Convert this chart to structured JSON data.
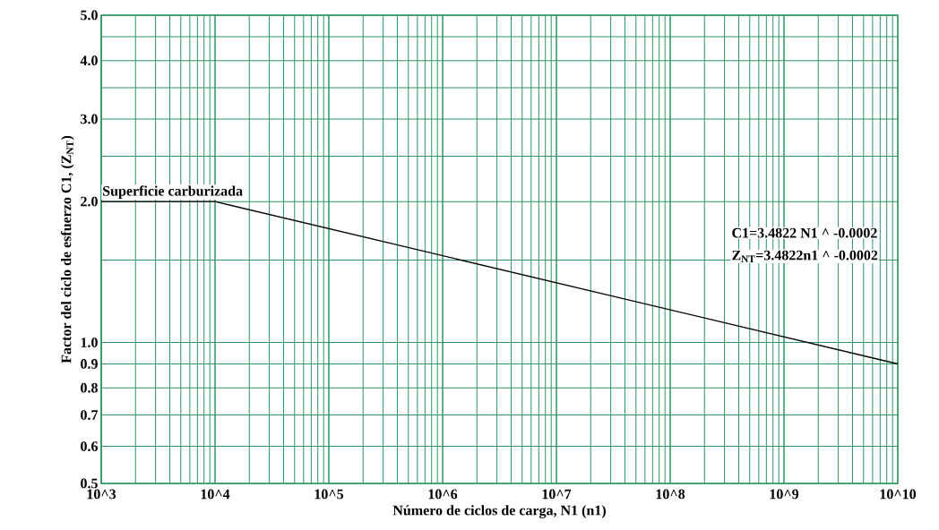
{
  "chart_data": {
    "type": "line",
    "xlabel": "Número de ciclos de carga, N1 (n1)",
    "ylabel": "Factor del ciclo de esfuerzo C1, (Z$_{NT}$)",
    "x": [
      1000,
      10000,
      10000000000
    ],
    "series": [
      {
        "color": "#000000",
        "values": [
          2.0,
          2.0,
          0.9
        ]
      }
    ],
    "log": "xy",
    "xlim": [
      1000,
      10000000000
    ],
    "ylim": [
      0.5,
      5.0
    ],
    "xticks": [
      {
        "value": 1000,
        "label": "10^3"
      },
      {
        "value": 10000,
        "label": "10^4"
      },
      {
        "value": 100000,
        "label": "10^5"
      },
      {
        "value": 1000000,
        "label": "10^6"
      },
      {
        "value": 10000000,
        "label": "10^7"
      },
      {
        "value": 100000000,
        "label": "10^8"
      },
      {
        "value": 1000000000,
        "label": "10^9"
      },
      {
        "value": 10000000000,
        "label": "10^10"
      }
    ],
    "yticks": [
      0.5,
      0.6,
      0.7,
      0.8,
      0.9,
      {
        "value": 1,
        "label": "1.0"
      },
      {
        "value": 1.5,
        "label": null
      },
      {
        "value": 2,
        "label": "2.0"
      },
      {
        "value": 2.5,
        "label": null
      },
      {
        "value": 3,
        "label": "3.0"
      },
      {
        "value": 3.5,
        "label": null
      },
      {
        "value": 4,
        "label": "4.0"
      },
      {
        "value": 4.5,
        "label": null
      },
      {
        "value": 5,
        "label": "5.0"
      }
    ],
    "grid": true,
    "marker": "none",
    "line_style": "solid",
    "annotations": [
      {
        "text": "Superficie carburizada",
        "x": 1000,
        "y": 2.0
      },
      "C1=3.4822 N1 ^ -0.0002",
      "Z$_{NT}$=3.4822n1 ^ -0.0002"
    ]
  }
}
